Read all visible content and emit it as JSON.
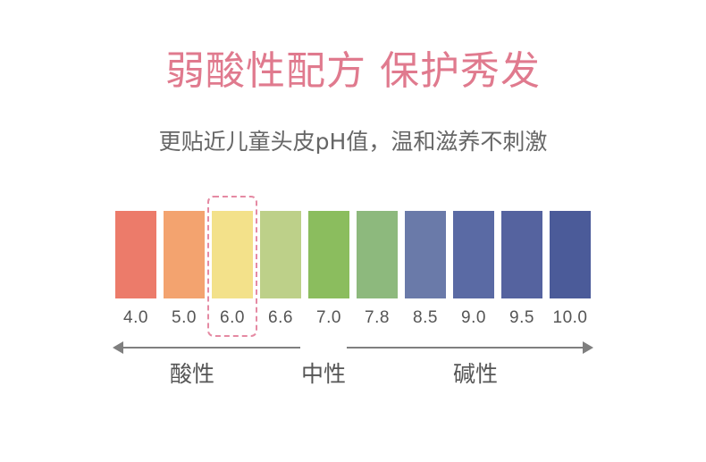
{
  "title": "弱酸性配方 保护秀发",
  "subtitle": "更贴近儿童头皮pH值，温和滋养不刺激",
  "ph_scale": [
    {
      "value": "4.0",
      "color": "#ec7b6a"
    },
    {
      "value": "5.0",
      "color": "#f3a36f"
    },
    {
      "value": "6.0",
      "color": "#f3e18a"
    },
    {
      "value": "6.6",
      "color": "#bdd089"
    },
    {
      "value": "7.0",
      "color": "#8bbd5e"
    },
    {
      "value": "7.8",
      "color": "#8db97d"
    },
    {
      "value": "8.5",
      "color": "#6a7aa9"
    },
    {
      "value": "9.0",
      "color": "#5a6aa4"
    },
    {
      "value": "9.5",
      "color": "#55639f"
    },
    {
      "value": "10.0",
      "color": "#4b5b99"
    }
  ],
  "highlighted_value": "6.0",
  "zones": {
    "acidic": "酸性",
    "neutral": "中性",
    "alkaline": "碱性"
  },
  "colors": {
    "title": "#e07a8e",
    "highlight_border": "#e58aa3",
    "arrow": "#7f7f7f"
  }
}
